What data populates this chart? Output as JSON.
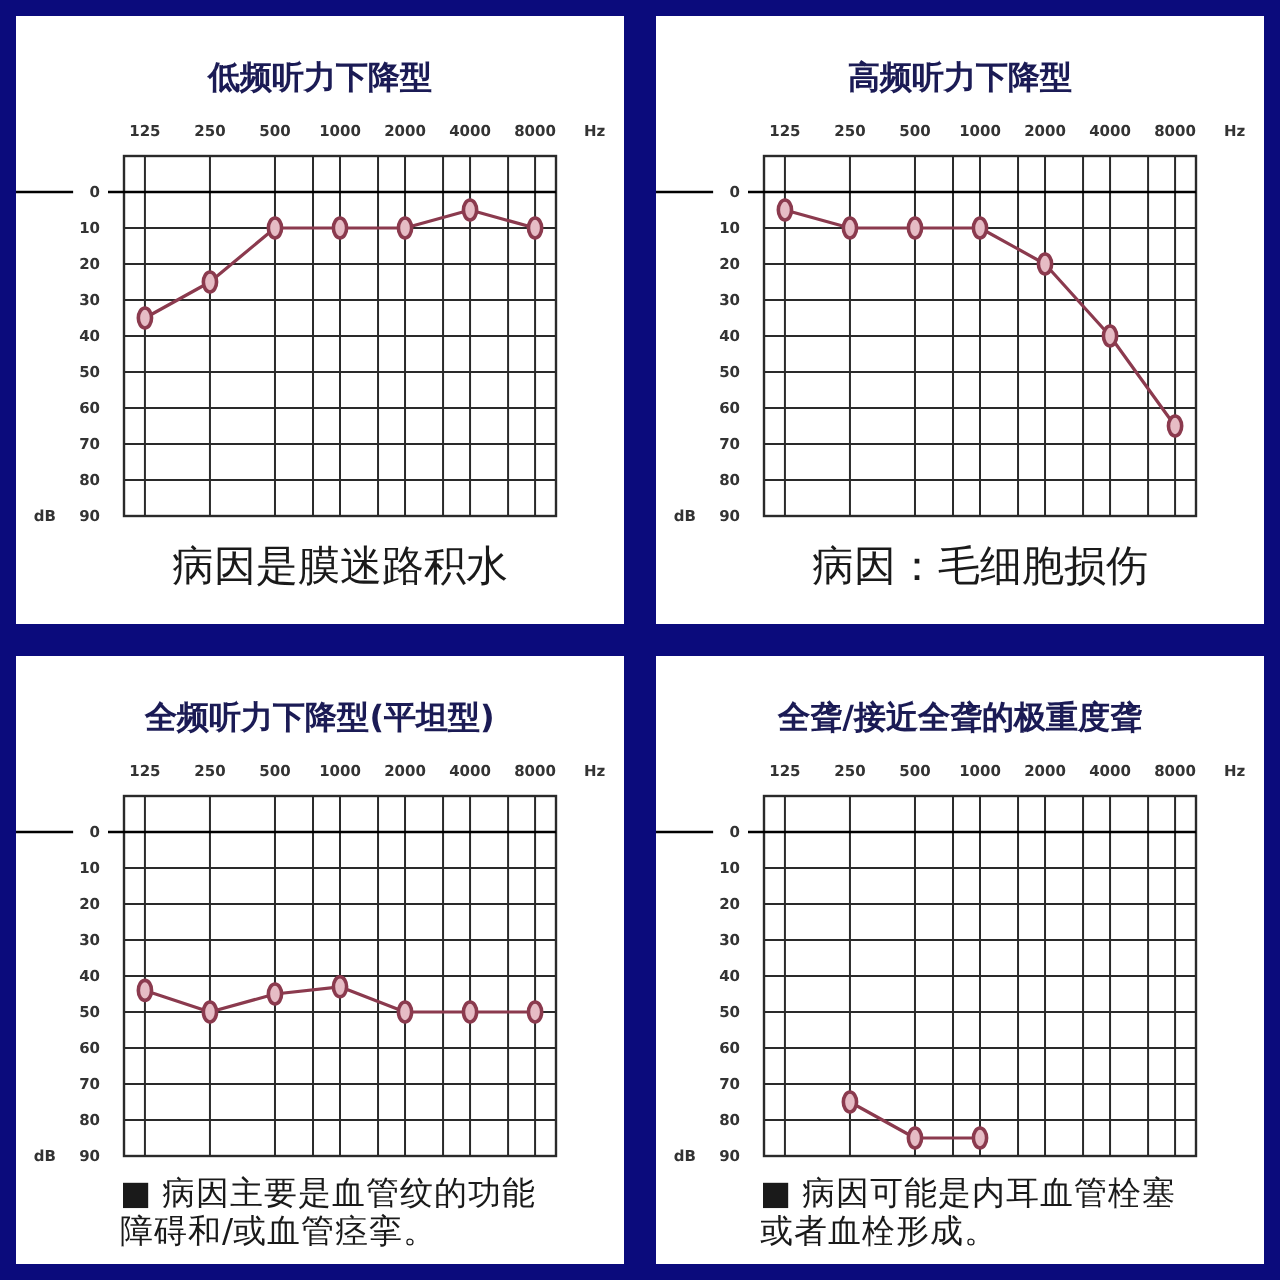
{
  "chart_data": [
    {
      "type": "line",
      "title": "低频听力下降型",
      "xlabel": "Hz",
      "ylabel": "dB",
      "x": [
        125,
        250,
        500,
        1000,
        2000,
        4000,
        8000
      ],
      "series": [
        {
          "color": "#8b3a4e",
          "values": [
            35,
            25,
            10,
            10,
            10,
            5,
            10
          ]
        }
      ],
      "log": "x",
      "xlim": [
        100,
        10000
      ],
      "xticks": [
        125,
        250,
        500,
        {
          "value": 750,
          "label": null
        },
        1000,
        {
          "value": 1500,
          "label": null
        },
        2000,
        {
          "value": 3000,
          "label": null
        },
        4000,
        {
          "value": 6000,
          "label": null
        },
        8000
      ],
      "ylim": [
        90,
        -10
      ],
      "yticks": [
        0,
        10,
        20,
        30,
        40,
        50,
        60,
        70,
        80,
        90
      ],
      "grid": true,
      "marker": "circle",
      "ref_lines": [
        {
          "axis": "y",
          "value": 0,
          "color": "#000000"
        }
      ],
      "annotations": [
        "病因是膜迷路积水"
      ]
    },
    {
      "type": "line",
      "title": "高频听力下降型",
      "xlabel": "Hz",
      "ylabel": "dB",
      "x": [
        125,
        250,
        500,
        1000,
        2000,
        4000,
        8000
      ],
      "series": [
        {
          "color": "#8b3a4e",
          "values": [
            5,
            10,
            10,
            10,
            20,
            40,
            65
          ]
        }
      ],
      "log": "x",
      "xlim": [
        100,
        10000
      ],
      "xticks": [
        125,
        250,
        500,
        {
          "value": 750,
          "label": null
        },
        1000,
        {
          "value": 1500,
          "label": null
        },
        2000,
        {
          "value": 3000,
          "label": null
        },
        4000,
        {
          "value": 6000,
          "label": null
        },
        8000
      ],
      "ylim": [
        90,
        -10
      ],
      "yticks": [
        0,
        10,
        20,
        30,
        40,
        50,
        60,
        70,
        80,
        90
      ],
      "grid": true,
      "marker": "circle",
      "ref_lines": [
        {
          "axis": "y",
          "value": 0,
          "color": "#000000"
        }
      ],
      "annotations": [
        "病因：毛细胞损伤"
      ]
    },
    {
      "type": "line",
      "title": "全频听力下降型(平坦型)",
      "xlabel": "Hz",
      "ylabel": "dB",
      "x": [
        125,
        250,
        500,
        1000,
        2000,
        4000,
        8000
      ],
      "series": [
        {
          "color": "#8b3a4e",
          "values": [
            44,
            50,
            45,
            43,
            50,
            50,
            50
          ]
        }
      ],
      "log": "x",
      "xlim": [
        100,
        10000
      ],
      "xticks": [
        125,
        250,
        500,
        {
          "value": 750,
          "label": null
        },
        1000,
        {
          "value": 1500,
          "label": null
        },
        2000,
        {
          "value": 3000,
          "label": null
        },
        4000,
        {
          "value": 6000,
          "label": null
        },
        8000
      ],
      "ylim": [
        90,
        -10
      ],
      "yticks": [
        0,
        10,
        20,
        30,
        40,
        50,
        60,
        70,
        80,
        90
      ],
      "grid": true,
      "marker": "circle",
      "ref_lines": [
        {
          "axis": "y",
          "value": 0,
          "color": "#000000"
        }
      ],
      "annotations": [
        "■ 病因主要是血管纹的功能障碍和/或血管痉挛。"
      ]
    },
    {
      "type": "line",
      "title": "全聋/接近全聋的极重度聋",
      "xlabel": "Hz",
      "ylabel": "dB",
      "x": [
        250,
        500,
        1000
      ],
      "series": [
        {
          "color": "#8b3a4e",
          "values": [
            75,
            85,
            85
          ]
        }
      ],
      "log": "x",
      "xlim": [
        100,
        10000
      ],
      "xticks": [
        125,
        250,
        500,
        {
          "value": 750,
          "label": null
        },
        1000,
        {
          "value": 1500,
          "label": null
        },
        2000,
        {
          "value": 3000,
          "label": null
        },
        4000,
        {
          "value": 6000,
          "label": null
        },
        8000
      ],
      "ylim": [
        90,
        -10
      ],
      "yticks": [
        0,
        10,
        20,
        30,
        40,
        50,
        60,
        70,
        80,
        90
      ],
      "grid": true,
      "marker": "circle",
      "ref_lines": [
        {
          "axis": "y",
          "value": 0,
          "color": "#000000"
        }
      ],
      "annotations": [
        "■ 病因可能是内耳血管栓塞或者血栓形成。"
      ]
    }
  ]
}
